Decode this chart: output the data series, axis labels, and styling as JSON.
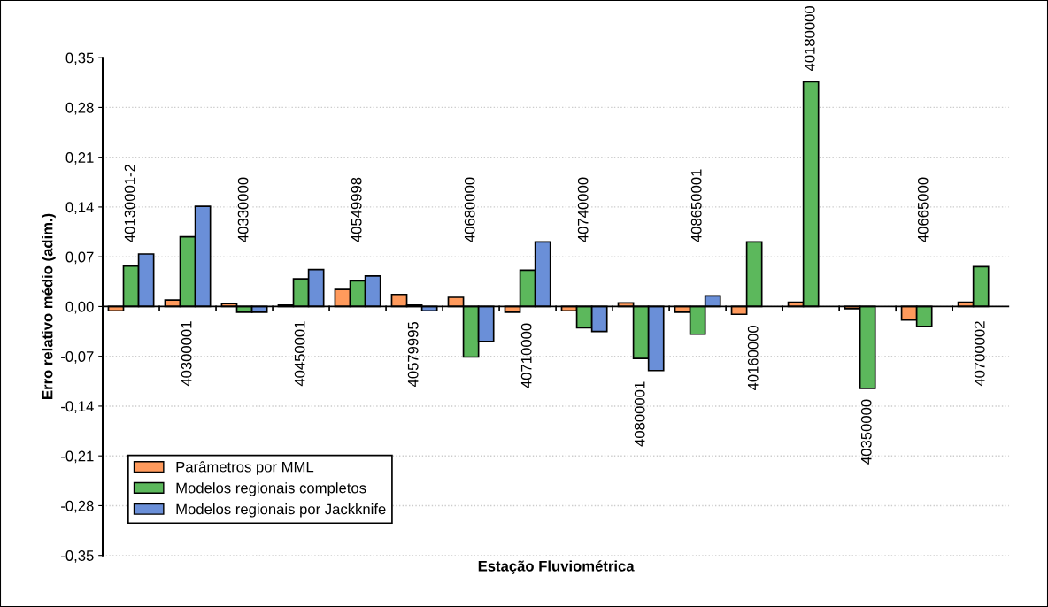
{
  "chart_data": {
    "type": "bar",
    "xlabel": "Estação Fluviométrica",
    "ylabel": "Erro relativo médio (adim.)",
    "categories": [
      "40130001-2",
      "40300001",
      "40330000",
      "40450001",
      "40549998",
      "40579995",
      "40680000",
      "40710000",
      "40740000",
      "40800001",
      "408650001",
      "40160000",
      "40180000",
      "40350000",
      "40665000",
      "40700002"
    ],
    "series": [
      {
        "name": "Parâmetros por MML",
        "color": "#ff9a5c",
        "values": [
          -0.006,
          0.009,
          0.004,
          0.002,
          0.024,
          0.017,
          0.013,
          -0.008,
          -0.006,
          0.005,
          -0.008,
          -0.011,
          0.006,
          -0.003,
          -0.019,
          0.006
        ]
      },
      {
        "name": "Modelos regionais completos",
        "color": "#5cb85c",
        "values": [
          0.057,
          0.098,
          -0.008,
          0.039,
          0.036,
          0.002,
          -0.071,
          0.051,
          -0.03,
          -0.073,
          -0.039,
          0.091,
          0.316,
          -0.115,
          -0.028,
          0.056
        ]
      },
      {
        "name": "Modelos regionais por Jackknife",
        "color": "#6a8fd8",
        "values": [
          0.074,
          0.141,
          -0.008,
          0.052,
          0.043,
          -0.006,
          -0.049,
          0.091,
          -0.035,
          -0.09,
          0.015,
          null,
          null,
          null,
          null,
          null
        ]
      }
    ],
    "ylim": [
      -0.35,
      0.35
    ],
    "yticks": [
      {
        "value": -0.35,
        "label": "-0,35"
      },
      {
        "value": -0.28,
        "label": "-0,28"
      },
      {
        "value": -0.21,
        "label": "-0,21"
      },
      {
        "value": -0.14,
        "label": "-0,14"
      },
      {
        "value": -0.07,
        "label": "-0,07"
      },
      {
        "value": 0,
        "label": "0,00"
      },
      {
        "value": 0.07,
        "label": "0,07"
      },
      {
        "value": 0.14,
        "label": "0,14"
      },
      {
        "value": 0.21,
        "label": "0,21"
      },
      {
        "value": 0.28,
        "label": "0,28"
      },
      {
        "value": 0.35,
        "label": "0,35"
      }
    ],
    "grid": "y",
    "legend": "bottom left"
  }
}
